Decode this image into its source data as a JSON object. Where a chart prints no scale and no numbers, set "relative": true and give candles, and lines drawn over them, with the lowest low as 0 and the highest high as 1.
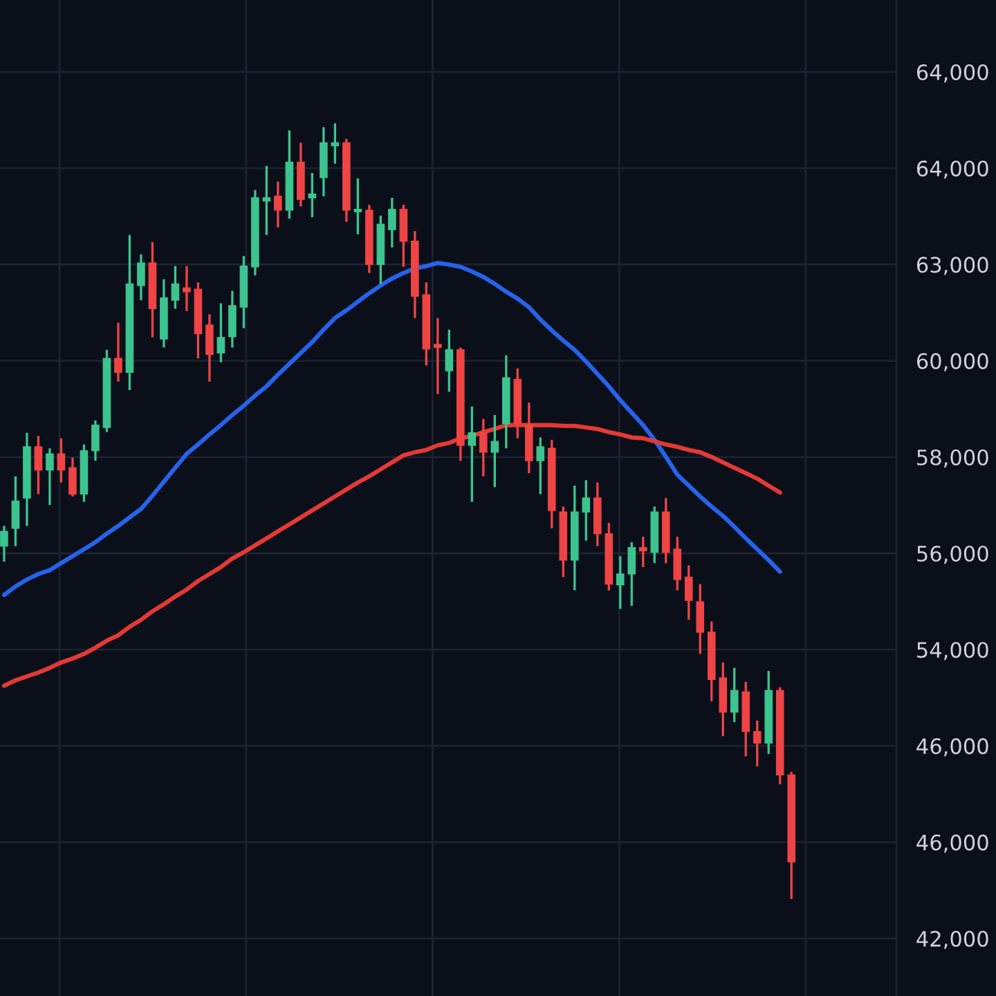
{
  "chart_data": {
    "type": "candlestick",
    "relative": true,
    "categories": [
      null,
      null,
      null,
      null,
      null,
      null,
      null,
      null,
      null,
      null,
      null,
      null,
      null,
      null,
      null,
      null,
      null,
      null,
      null,
      null,
      null,
      null,
      null,
      null,
      null,
      null,
      null,
      null,
      null,
      null,
      null,
      null,
      null,
      null,
      null,
      null,
      null,
      null,
      null,
      null,
      null,
      null,
      null,
      null,
      null,
      null,
      null,
      null,
      null,
      null,
      null,
      null,
      null,
      null,
      null,
      null,
      null,
      null,
      null,
      null,
      null,
      null,
      null,
      null,
      null,
      null,
      null,
      null,
      null,
      null
    ],
    "ohlc": [
      [
        0.455,
        0.481,
        0.435,
        0.474
      ],
      [
        0.478,
        0.545,
        0.455,
        0.513
      ],
      [
        0.517,
        0.601,
        0.481,
        0.583
      ],
      [
        0.583,
        0.597,
        0.522,
        0.553
      ],
      [
        0.553,
        0.581,
        0.508,
        0.574
      ],
      [
        0.574,
        0.594,
        0.537,
        0.553
      ],
      [
        0.556,
        0.569,
        0.519,
        0.522
      ],
      [
        0.522,
        0.586,
        0.512,
        0.578
      ],
      [
        0.578,
        0.617,
        0.565,
        0.611
      ],
      [
        0.608,
        0.708,
        0.602,
        0.697
      ],
      [
        0.697,
        0.743,
        0.667,
        0.679
      ],
      [
        0.679,
        0.856,
        0.656,
        0.793
      ],
      [
        0.791,
        0.831,
        0.772,
        0.82
      ],
      [
        0.82,
        0.847,
        0.724,
        0.761
      ],
      [
        0.722,
        0.799,
        0.711,
        0.775
      ],
      [
        0.772,
        0.816,
        0.761,
        0.793
      ],
      [
        0.788,
        0.816,
        0.758,
        0.783
      ],
      [
        0.786,
        0.795,
        0.697,
        0.729
      ],
      [
        0.74,
        0.754,
        0.667,
        0.702
      ],
      [
        0.704,
        0.768,
        0.692,
        0.724
      ],
      [
        0.725,
        0.784,
        0.711,
        0.765
      ],
      [
        0.763,
        0.829,
        0.736,
        0.816
      ],
      [
        0.815,
        0.914,
        0.804,
        0.904
      ],
      [
        0.9,
        0.945,
        0.856,
        0.904
      ],
      [
        0.906,
        0.925,
        0.866,
        0.888
      ],
      [
        0.888,
        0.991,
        0.877,
        0.95
      ],
      [
        0.95,
        0.975,
        0.893,
        0.902
      ],
      [
        0.904,
        0.936,
        0.879,
        0.909
      ],
      [
        0.93,
        0.995,
        0.906,
        0.975
      ],
      [
        0.971,
        1,
        0.948,
        0.975
      ],
      [
        0.975,
        0.98,
        0.873,
        0.888
      ],
      [
        0.886,
        0.929,
        0.857,
        0.889
      ],
      [
        0.888,
        0.895,
        0.807,
        0.818
      ],
      [
        0.818,
        0.881,
        0.793,
        0.87
      ],
      [
        0.863,
        0.904,
        0.84,
        0.889
      ],
      [
        0.889,
        0.895,
        0.815,
        0.848
      ],
      [
        0.848,
        0.861,
        0.749,
        0.777
      ],
      [
        0.779,
        0.795,
        0.688,
        0.709
      ],
      [
        0.715,
        0.749,
        0.651,
        0.711
      ],
      [
        0.681,
        0.734,
        0.654,
        0.708
      ],
      [
        0.708,
        0.711,
        0.565,
        0.585
      ],
      [
        0.585,
        0.635,
        0.512,
        0.601
      ],
      [
        0.601,
        0.619,
        0.545,
        0.576
      ],
      [
        0.576,
        0.624,
        0.531,
        0.59
      ],
      [
        0.613,
        0.701,
        0.581,
        0.672
      ],
      [
        0.67,
        0.684,
        0.594,
        0.613
      ],
      [
        0.611,
        0.64,
        0.549,
        0.565
      ],
      [
        0.565,
        0.595,
        0.522,
        0.583
      ],
      [
        0.581,
        0.592,
        0.478,
        0.501
      ],
      [
        0.499,
        0.506,
        0.415,
        0.437
      ],
      [
        0.437,
        0.533,
        0.398,
        0.499
      ],
      [
        0.499,
        0.54,
        0.462,
        0.517
      ],
      [
        0.517,
        0.537,
        0.455,
        0.471
      ],
      [
        0.471,
        0.485,
        0.398,
        0.406
      ],
      [
        0.405,
        0.442,
        0.374,
        0.419
      ],
      [
        0.419,
        0.46,
        0.378,
        0.453
      ],
      [
        0.453,
        0.467,
        0.428,
        0.449
      ],
      [
        0.447,
        0.506,
        0.433,
        0.499
      ],
      [
        0.499,
        0.517,
        0.433,
        0.447
      ],
      [
        0.451,
        0.467,
        0.398,
        0.412
      ],
      [
        0.415,
        0.43,
        0.36,
        0.385
      ],
      [
        0.383,
        0.406,
        0.316,
        0.344
      ],
      [
        0.344,
        0.358,
        0.255,
        0.283
      ],
      [
        0.285,
        0.305,
        0.21,
        0.241
      ],
      [
        0.241,
        0.298,
        0.228,
        0.269
      ],
      [
        0.267,
        0.28,
        0.184,
        0.216
      ],
      [
        0.216,
        0.23,
        0.171,
        0.201
      ],
      [
        0.201,
        0.294,
        0.187,
        0.269
      ],
      [
        0.269,
        0.273,
        0.148,
        0.16
      ],
      [
        0.16,
        0.164,
        0,
        0.048
      ]
    ],
    "colors": [
      "#3cc48f",
      "#3cc48f",
      "#3cc48f",
      "#ef4444",
      "#3cc48f",
      "#ef4444",
      "#ef4444",
      "#3cc48f",
      "#3cc48f",
      "#3cc48f",
      "#ef4444",
      "#3cc48f",
      "#3cc48f",
      "#ef4444",
      "#3cc48f",
      "#3cc48f",
      "#ef4444",
      "#ef4444",
      "#ef4444",
      "#3cc48f",
      "#3cc48f",
      "#3cc48f",
      "#3cc48f",
      "#3cc48f",
      "#ef4444",
      "#3cc48f",
      "#ef4444",
      "#3cc48f",
      "#3cc48f",
      "#3cc48f",
      "#ef4444",
      "#3cc48f",
      "#ef4444",
      "#3cc48f",
      "#3cc48f",
      "#ef4444",
      "#ef4444",
      "#ef4444",
      "#ef4444",
      "#3cc48f",
      "#ef4444",
      "#3cc48f",
      "#ef4444",
      "#3cc48f",
      "#3cc48f",
      "#ef4444",
      "#ef4444",
      "#3cc48f",
      "#ef4444",
      "#ef4444",
      "#3cc48f",
      "#3cc48f",
      "#ef4444",
      "#ef4444",
      "#3cc48f",
      "#3cc48f",
      "#ef4444",
      "#3cc48f",
      "#ef4444",
      "#ef4444",
      "#ef4444",
      "#ef4444",
      "#ef4444",
      "#ef4444",
      "#3cc48f",
      "#ef4444",
      "#ef4444",
      "#3cc48f",
      "#ef4444",
      "#ef4444"
    ],
    "series": [
      {
        "type": "line",
        "color": "#2563eb",
        "values": [
          0.392,
          0.403,
          0.412,
          0.419,
          0.424,
          0.433,
          0.442,
          0.451,
          0.46,
          0.471,
          0.481,
          0.492,
          0.503,
          0.52,
          0.538,
          0.556,
          0.574,
          0.586,
          0.599,
          0.611,
          0.624,
          0.636,
          0.649,
          0.661,
          0.676,
          0.69,
          0.704,
          0.718,
          0.734,
          0.749,
          0.759,
          0.77,
          0.781,
          0.791,
          0.8,
          0.807,
          0.813,
          0.816,
          0.82,
          0.818,
          0.815,
          0.809,
          0.802,
          0.793,
          0.783,
          0.774,
          0.763,
          0.747,
          0.733,
          0.72,
          0.708,
          0.693,
          0.677,
          0.661,
          0.643,
          0.627,
          0.611,
          0.592,
          0.57,
          0.547,
          0.533,
          0.519,
          0.506,
          0.494,
          0.48,
          0.465,
          0.451,
          0.437,
          0.422,
          null
        ]
      },
      {
        "type": "line",
        "color": "#e53935",
        "values": [
          0.275,
          0.282,
          0.287,
          0.292,
          0.298,
          0.305,
          0.31,
          0.316,
          0.324,
          0.333,
          0.34,
          0.351,
          0.36,
          0.371,
          0.38,
          0.39,
          0.399,
          0.41,
          0.419,
          0.428,
          0.439,
          0.447,
          0.456,
          0.465,
          0.474,
          0.483,
          0.492,
          0.501,
          0.51,
          0.519,
          0.528,
          0.537,
          0.545,
          0.554,
          0.563,
          0.572,
          0.576,
          0.579,
          0.585,
          0.588,
          0.594,
          0.597,
          0.602,
          0.606,
          0.611,
          0.611,
          0.611,
          0.611,
          0.611,
          0.61,
          0.61,
          0.608,
          0.606,
          0.602,
          0.599,
          0.595,
          0.594,
          0.59,
          0.586,
          0.583,
          0.579,
          0.576,
          0.57,
          0.563,
          0.556,
          0.549,
          0.542,
          0.533,
          0.524,
          null
        ]
      }
    ],
    "annotations": [
      "64,000",
      "64,000",
      "63,000",
      "60,000",
      "58,000",
      "56,000",
      "54,000",
      "46,000",
      "46,000",
      "42,000"
    ],
    "grid": true,
    "legend": false
  }
}
